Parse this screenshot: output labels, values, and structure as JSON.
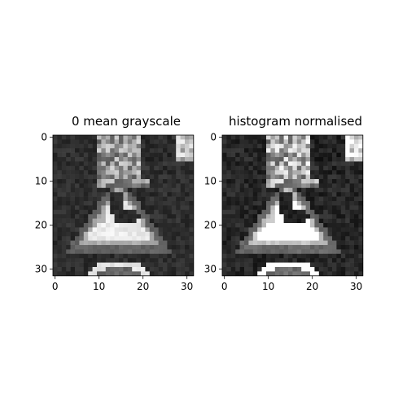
{
  "panels": [
    {
      "title": "0 mean grayscale",
      "x_ticks": [
        "0",
        "10",
        "20",
        "30"
      ],
      "y_ticks": [
        "0",
        "10",
        "20",
        "30"
      ],
      "variant": "mean"
    },
    {
      "title": "histogram normalised",
      "x_ticks": [
        "0",
        "10",
        "20",
        "30"
      ],
      "y_ticks": [
        "0",
        "10",
        "20",
        "30"
      ],
      "variant": "hist"
    }
  ],
  "image_content": "grayscale triangular warning road sign with dark diagonal symbol"
}
